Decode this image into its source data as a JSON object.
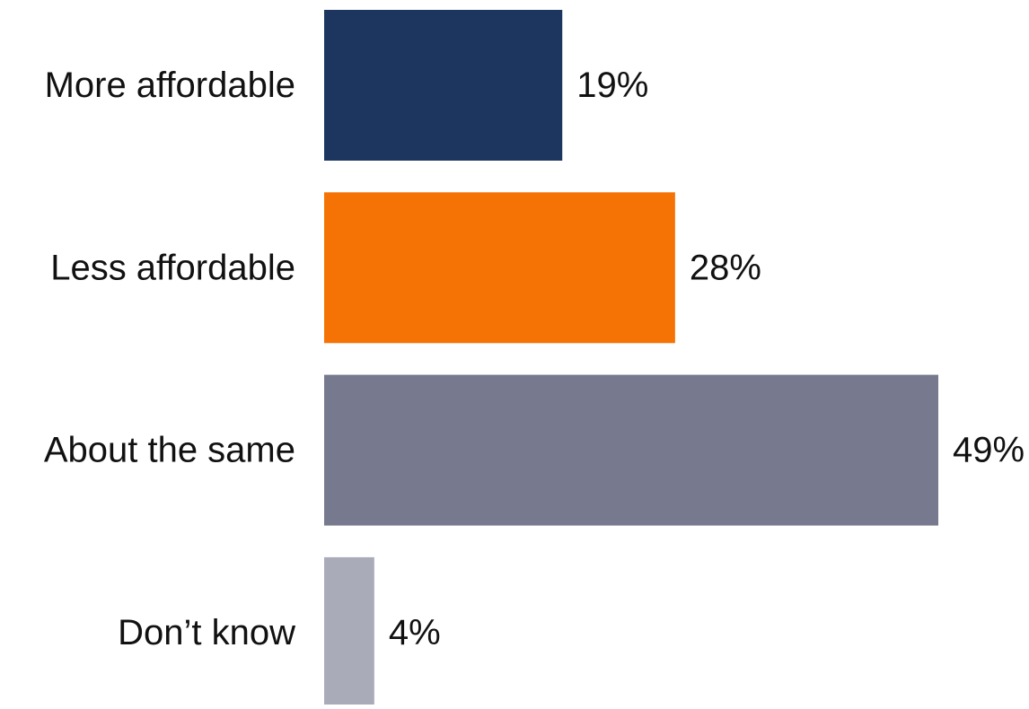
{
  "chart_data": {
    "type": "bar",
    "orientation": "horizontal",
    "categories": [
      "More affordable",
      "Less affordable",
      "About the same",
      "Don’t know"
    ],
    "values": [
      19,
      28,
      49,
      4
    ],
    "value_labels": [
      "19%",
      "28%",
      "49%",
      "4%"
    ],
    "colors": [
      "#1d365f",
      "#f57204",
      "#777a8e",
      "#a9abb8"
    ],
    "unit": "%",
    "xlim": [
      0,
      49
    ],
    "grid": false,
    "legend": "none"
  }
}
